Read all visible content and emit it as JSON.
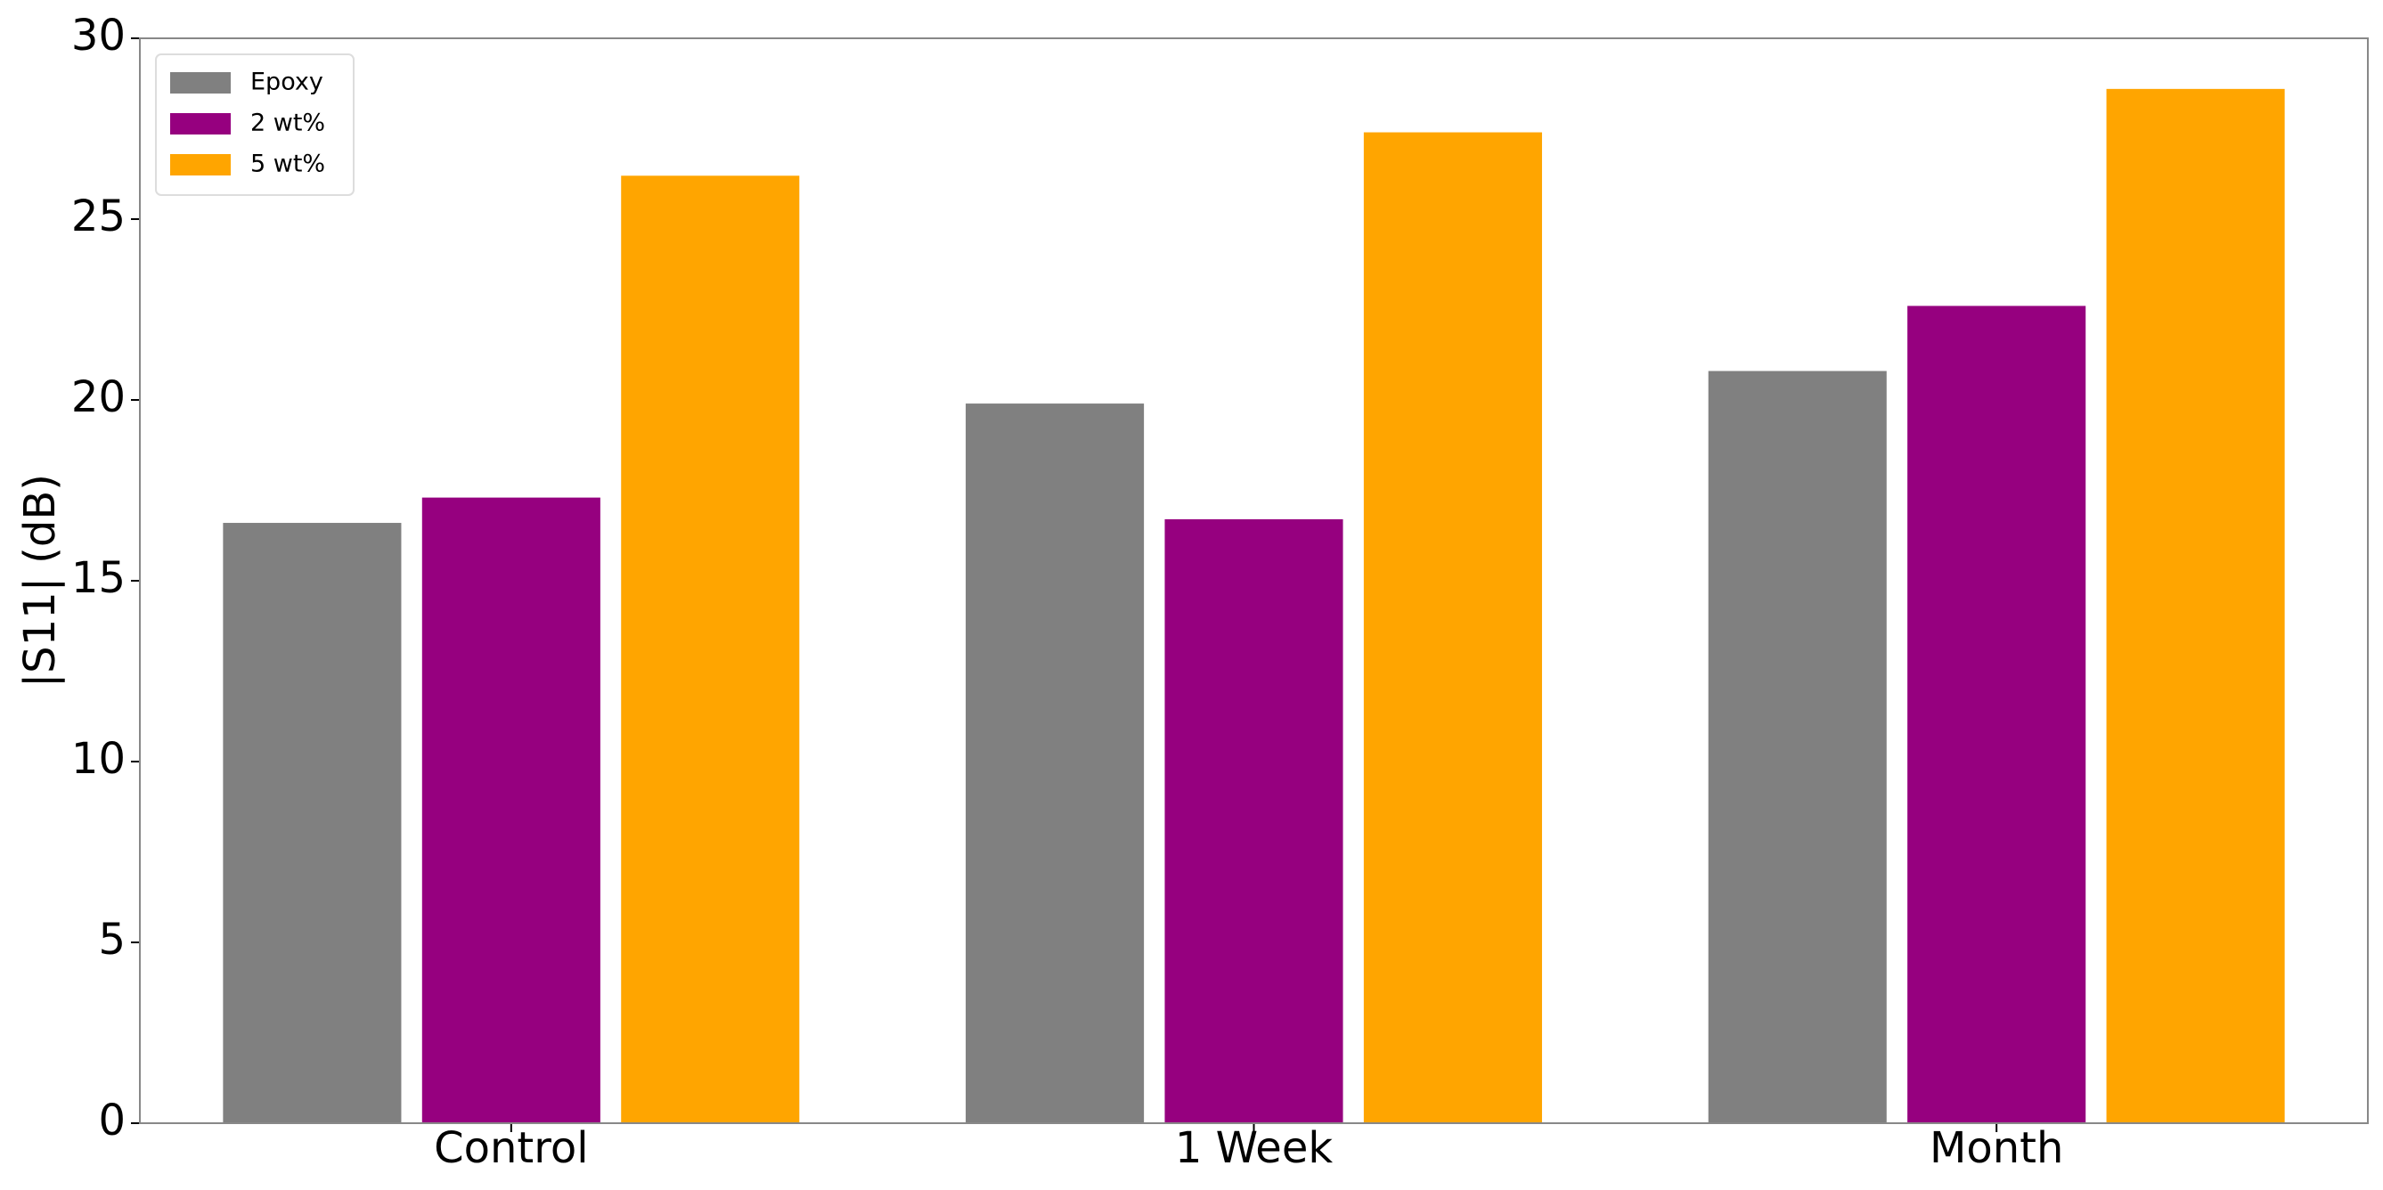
{
  "chart_data": {
    "type": "bar",
    "y_label": "|S11| (dB)",
    "categories": [
      "Control",
      "1 Week",
      "Month"
    ],
    "series": [
      {
        "name": "Epoxy",
        "color": "#808080",
        "values": [
          16.6,
          19.9,
          20.8
        ]
      },
      {
        "name": "2 wt%",
        "color": "#96007f",
        "values": [
          17.3,
          16.7,
          22.6
        ]
      },
      {
        "name": "5 wt%",
        "color": "#ffa500",
        "values": [
          26.2,
          27.4,
          28.6
        ]
      }
    ],
    "ylim": [
      0,
      30
    ],
    "yticks": [
      0,
      5,
      10,
      15,
      20,
      25,
      30
    ],
    "grid": false,
    "legend": "upper left"
  }
}
